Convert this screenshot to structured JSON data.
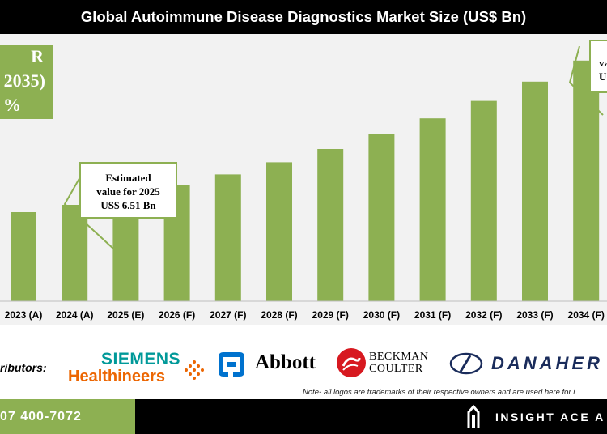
{
  "header": {
    "title": "Global Autoimmune Disease Diagnostics Market Size (US$ Bn)"
  },
  "cagr": {
    "line1": "R",
    "line2": "2035)",
    "line3": "%"
  },
  "callouts": {
    "estimate_2025": {
      "line1": "Estimated",
      "line2": "value for 2025",
      "line3": "US$ 6.51 Bn"
    },
    "forecast_2035": {
      "line1": "va",
      "line2": "U"
    }
  },
  "distributors": {
    "label": "ributors:",
    "logos": [
      {
        "name": "siemens-healthineers-logo",
        "line1": "SIEMENS",
        "line2": "Healthineers"
      },
      {
        "name": "abbott-logo",
        "text": "Abbott"
      },
      {
        "name": "beckman-coulter-logo",
        "line1": "BECKMAN",
        "line2": "COULTER"
      },
      {
        "name": "danaher-logo",
        "text": "DANAHER"
      }
    ]
  },
  "footnote": "Note- all logos are trademarks of their respective owners and are used here for i",
  "footer": {
    "phone": "07 400-7072",
    "brand": "INSIGHT ACE A"
  },
  "colors": {
    "bar": "#8db052",
    "background": "#f2f2f2",
    "header": "#000000"
  },
  "chart_data": {
    "type": "bar",
    "title": "Global Autoimmune Disease Diagnostics Market Size (US$ Bn)",
    "xlabel": "",
    "ylabel": "",
    "categories": [
      "2023 (A)",
      "2024 (A)",
      "2025 (E)",
      "2026 (F)",
      "2027 (F)",
      "2028 (F)",
      "2029 (F)",
      "2030 (F)",
      "2031 (F)",
      "2032 (F)",
      "2033 (F)",
      "2034 (F)"
    ],
    "values": [
      5.5,
      5.95,
      6.51,
      7.15,
      7.83,
      8.58,
      9.4,
      10.3,
      11.29,
      12.37,
      13.56,
      14.86
    ],
    "ylim": [
      0,
      16.5
    ],
    "grid": false,
    "legend": "none"
  }
}
